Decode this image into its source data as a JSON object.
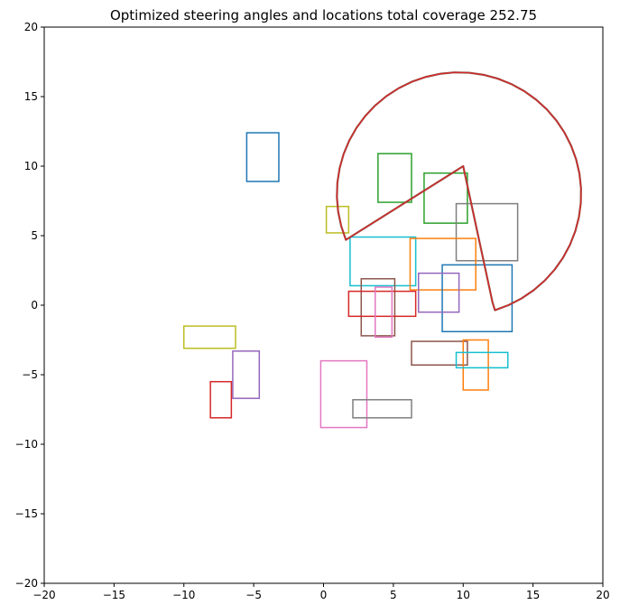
{
  "chart_data": {
    "type": "scatter",
    "title": "Optimized steering angles and locations total coverage 252.75",
    "xlabel": "",
    "ylabel": "",
    "xlim": [
      -20,
      20
    ],
    "ylim": [
      -20,
      20
    ],
    "xticks": [
      -20,
      -15,
      -10,
      -5,
      0,
      5,
      10,
      15,
      20
    ],
    "yticks": [
      -20,
      -15,
      -10,
      -5,
      0,
      5,
      10,
      15,
      20
    ],
    "xtick_labels": [
      "−20",
      "−15",
      "−10",
      "−5",
      "0",
      "5",
      "10",
      "15",
      "20"
    ],
    "ytick_labels": [
      "−20",
      "−15",
      "−10",
      "−5",
      "0",
      "5",
      "10",
      "15",
      "20"
    ],
    "grid": false,
    "rectangles": [
      {
        "x0": -5.5,
        "x1": -3.2,
        "y0": 8.9,
        "y1": 12.4,
        "color": "#1f77b4"
      },
      {
        "x0": 3.9,
        "x1": 6.3,
        "y0": 7.4,
        "y1": 10.9,
        "color": "#2ca02c"
      },
      {
        "x0": 7.2,
        "x1": 10.3,
        "y0": 5.9,
        "y1": 9.5,
        "color": "#2ca02c"
      },
      {
        "x0": 0.2,
        "x1": 1.8,
        "y0": 5.2,
        "y1": 7.1,
        "color": "#bcbd22"
      },
      {
        "x0": 9.5,
        "x1": 13.9,
        "y0": 3.2,
        "y1": 7.3,
        "color": "#7f7f7f"
      },
      {
        "x0": 1.9,
        "x1": 6.6,
        "y0": 1.4,
        "y1": 4.9,
        "color": "#17becf"
      },
      {
        "x0": 6.2,
        "x1": 10.9,
        "y0": 1.1,
        "y1": 4.8,
        "color": "#ff7f0e"
      },
      {
        "x0": 8.5,
        "x1": 13.5,
        "y0": -1.9,
        "y1": 2.9,
        "color": "#1f77b4"
      },
      {
        "x0": 6.8,
        "x1": 9.7,
        "y0": -0.5,
        "y1": 2.3,
        "color": "#9467bd"
      },
      {
        "x0": 2.7,
        "x1": 5.1,
        "y0": -2.2,
        "y1": 1.9,
        "color": "#8c564b"
      },
      {
        "x0": 1.8,
        "x1": 6.6,
        "y0": -0.8,
        "y1": 1.0,
        "color": "#d62728"
      },
      {
        "x0": 3.7,
        "x1": 4.9,
        "y0": -2.3,
        "y1": 1.3,
        "color": "#e377c2"
      },
      {
        "x0": -10.0,
        "x1": -6.3,
        "y0": -3.1,
        "y1": -1.5,
        "color": "#bcbd22"
      },
      {
        "x0": -6.5,
        "x1": -4.6,
        "y0": -6.7,
        "y1": -3.3,
        "color": "#9467bd"
      },
      {
        "x0": -8.1,
        "x1": -6.6,
        "y0": -8.1,
        "y1": -5.5,
        "color": "#d62728"
      },
      {
        "x0": -0.2,
        "x1": 3.1,
        "y0": -8.8,
        "y1": -4.0,
        "color": "#e377c2"
      },
      {
        "x0": 2.1,
        "x1": 6.3,
        "y0": -8.1,
        "y1": -6.8,
        "color": "#7f7f7f"
      },
      {
        "x0": 6.3,
        "x1": 10.3,
        "y0": -4.3,
        "y1": -2.6,
        "color": "#8c564b"
      },
      {
        "x0": 10.0,
        "x1": 11.8,
        "y0": -6.1,
        "y1": -2.5,
        "color": "#ff7f0e"
      },
      {
        "x0": 9.5,
        "x1": 13.2,
        "y0": -4.5,
        "y1": -3.4,
        "color": "#17becf"
      }
    ],
    "sector": {
      "apex": [
        12.1,
        0.2
      ],
      "corner_a": [
        10.0,
        10.0
      ],
      "corner_b": [
        1.6,
        4.7
      ],
      "color": "#d62728",
      "outline_color": "#8c564b"
    }
  }
}
